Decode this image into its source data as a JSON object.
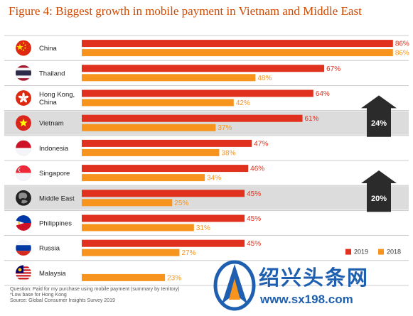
{
  "title": "Figure 4: Biggest growth in mobile payment in Vietnam and Middle East",
  "chart_data": {
    "type": "bar",
    "orientation": "horizontal",
    "categories": [
      "China",
      "Thailand",
      "Hong Kong, China",
      "Vietnam",
      "Indonesia",
      "Singapore",
      "Middle East",
      "Philippines",
      "Russia",
      "Malaysia"
    ],
    "category_lines": [
      [
        "China"
      ],
      [
        "Thailand"
      ],
      [
        "Hong Kong,",
        "China"
      ],
      [
        "Vietnam"
      ],
      [
        "Indonesia"
      ],
      [
        "Singapore"
      ],
      [
        "Middle East"
      ],
      [
        "Philippines"
      ],
      [
        "Russia"
      ],
      [
        "Malaysia"
      ]
    ],
    "series": [
      {
        "name": "2019",
        "color": "#e0301e",
        "values": [
          86,
          67,
          64,
          61,
          47,
          46,
          45,
          45,
          45,
          null
        ]
      },
      {
        "name": "2018",
        "color": "#f7941d",
        "values": [
          86,
          48,
          42,
          37,
          38,
          34,
          25,
          31,
          27,
          23
        ]
      }
    ],
    "value_suffix": "%",
    "xlim": [
      0,
      88
    ],
    "highlighted_categories": [
      "Vietnam",
      "Middle East"
    ],
    "highlight_color": "#dcdcdc",
    "growth_callouts": [
      {
        "category": "Vietnam",
        "label": "24%"
      },
      {
        "category": "Middle East",
        "label": "20%"
      }
    ],
    "legend_position": "bottom-right",
    "flags": [
      "china-flag-icon",
      "thailand-flag-icon",
      "hong-kong-flag-icon",
      "vietnam-flag-icon",
      "indonesia-flag-icon",
      "singapore-flag-icon",
      "middle-east-globe-icon",
      "philippines-flag-icon",
      "russia-flag-icon",
      "malaysia-flag-icon"
    ]
  },
  "footnotes": [
    "Question: Paid for my purchase using mobile payment (summary by territory)",
    "*Low base for Hong Kong",
    "Source: Global Consumer Insights Survey 2019"
  ],
  "watermark": {
    "text": "绍兴头条网",
    "url": "www.sx198.com"
  }
}
